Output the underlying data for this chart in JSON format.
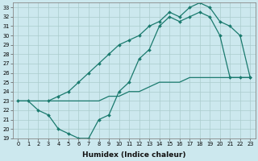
{
  "xlabel": "Humidex (Indice chaleur)",
  "ylabel": "",
  "bg_color": "#cce8ee",
  "grid_color": "#aacccc",
  "line_color": "#1a7a6e",
  "xlim": [
    -0.5,
    23.5
  ],
  "ylim": [
    19,
    33.5
  ],
  "yticks": [
    19,
    20,
    21,
    22,
    23,
    24,
    25,
    26,
    27,
    28,
    29,
    30,
    31,
    32,
    33
  ],
  "xticks": [
    0,
    1,
    2,
    3,
    4,
    5,
    6,
    7,
    8,
    9,
    10,
    11,
    12,
    13,
    14,
    15,
    16,
    17,
    18,
    19,
    20,
    21,
    22,
    23
  ],
  "curve1": {
    "x": [
      0,
      1,
      2,
      3,
      4,
      5,
      6,
      7,
      8,
      9,
      10,
      11,
      12,
      13,
      14,
      15,
      16,
      17,
      18,
      19,
      20,
      21,
      22,
      23
    ],
    "y": [
      23,
      23,
      22,
      21.5,
      20,
      19.5,
      19,
      19,
      21,
      21.5,
      24,
      25,
      27.5,
      28.5,
      31,
      32,
      31.5,
      32,
      32.5,
      32,
      30,
      25.5,
      25.5,
      25.5
    ]
  },
  "curve2": {
    "x": [
      3,
      4,
      5,
      6,
      7,
      8,
      9,
      10,
      11,
      12,
      13,
      14,
      15,
      16,
      17,
      18,
      19,
      20,
      21,
      22,
      23
    ],
    "y": [
      23,
      23.5,
      24,
      25,
      26,
      27,
      28,
      29,
      29.5,
      30,
      31,
      31.5,
      32.5,
      32,
      33,
      33.5,
      33,
      31.5,
      31,
      30,
      25.5
    ]
  },
  "curve3": {
    "x": [
      0,
      1,
      2,
      3,
      4,
      5,
      6,
      7,
      8,
      9,
      10,
      11,
      12,
      13,
      14,
      15,
      16,
      17,
      18,
      19,
      20,
      21,
      22,
      23
    ],
    "y": [
      23,
      23,
      23,
      23,
      23,
      23,
      23,
      23,
      23,
      23.5,
      23.5,
      24,
      24,
      24.5,
      25,
      25,
      25,
      25.5,
      25.5,
      25.5,
      25.5,
      25.5,
      25.5,
      25.5
    ]
  }
}
